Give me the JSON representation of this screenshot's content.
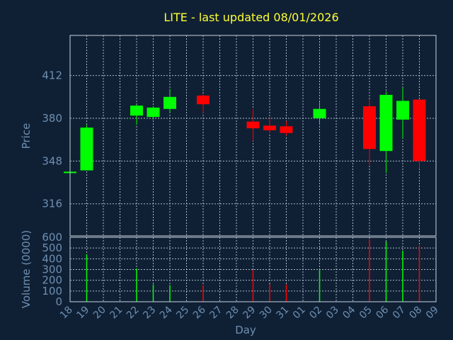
{
  "chart_data": [
    {
      "type": "candlestick",
      "title": "LITE - last updated 08/01/2026",
      "ylabel": "Price",
      "ylim": [
        292,
        442
      ],
      "yticks": [
        316,
        348,
        380,
        412
      ],
      "x": [
        "18",
        "19",
        "20",
        "21",
        "22",
        "23",
        "24",
        "25",
        "26",
        "27",
        "28",
        "29",
        "30",
        "31",
        "01",
        "02",
        "03",
        "04",
        "05",
        "06",
        "07",
        "08",
        "09"
      ],
      "candles": [
        {
          "x": "18",
          "open": 339.5,
          "high": 339.5,
          "low": 339.5,
          "close": 339.5,
          "dir": "up"
        },
        {
          "x": "19",
          "open": 341,
          "high": 375,
          "low": 341,
          "close": 373,
          "dir": "up"
        },
        {
          "x": "22",
          "open": 382,
          "high": 390,
          "low": 375,
          "close": 389.5,
          "dir": "up"
        },
        {
          "x": "23",
          "open": 381,
          "high": 389,
          "low": 379,
          "close": 388,
          "dir": "up"
        },
        {
          "x": "24",
          "open": 387,
          "high": 402,
          "low": 384,
          "close": 396,
          "dir": "up"
        },
        {
          "x": "26",
          "open": 397,
          "high": 398,
          "low": 384,
          "close": 390.5,
          "dir": "down"
        },
        {
          "x": "29",
          "open": 377.5,
          "high": 387,
          "low": 363,
          "close": 372.5,
          "dir": "down"
        },
        {
          "x": "30",
          "open": 374.5,
          "high": 380,
          "low": 369,
          "close": 371,
          "dir": "down"
        },
        {
          "x": "31",
          "open": 374,
          "high": 378,
          "low": 367,
          "close": 369,
          "dir": "down"
        },
        {
          "x": "02",
          "open": 380,
          "high": 392,
          "low": 375,
          "close": 387,
          "dir": "up"
        },
        {
          "x": "05",
          "open": 389,
          "high": 394,
          "low": 345,
          "close": 357,
          "dir": "down"
        },
        {
          "x": "06",
          "open": 355.5,
          "high": 400,
          "low": 339,
          "close": 397.5,
          "dir": "up"
        },
        {
          "x": "07",
          "open": 379,
          "high": 403,
          "low": 365,
          "close": 393,
          "dir": "up"
        },
        {
          "x": "08",
          "open": 394,
          "high": 394,
          "low": 342,
          "close": 348,
          "dir": "down"
        }
      ]
    },
    {
      "type": "bar",
      "ylabel": "Volume (0000)",
      "xlabel": "Day",
      "ylim": [
        0,
        600
      ],
      "yticks": [
        0,
        100,
        200,
        300,
        400,
        500,
        600
      ],
      "categories": [
        "18",
        "19",
        "20",
        "21",
        "22",
        "23",
        "24",
        "25",
        "26",
        "27",
        "28",
        "29",
        "30",
        "31",
        "01",
        "02",
        "03",
        "04",
        "05",
        "06",
        "07",
        "08",
        "09"
      ],
      "values": [
        {
          "x": "19",
          "v": 440,
          "dir": "up"
        },
        {
          "x": "22",
          "v": 310,
          "dir": "up"
        },
        {
          "x": "23",
          "v": 160,
          "dir": "up"
        },
        {
          "x": "24",
          "v": 155,
          "dir": "up"
        },
        {
          "x": "26",
          "v": 155,
          "dir": "down"
        },
        {
          "x": "29",
          "v": 295,
          "dir": "down"
        },
        {
          "x": "30",
          "v": 165,
          "dir": "down"
        },
        {
          "x": "31",
          "v": 160,
          "dir": "down"
        },
        {
          "x": "02",
          "v": 295,
          "dir": "up"
        },
        {
          "x": "05",
          "v": 580,
          "dir": "down"
        },
        {
          "x": "06",
          "v": 560,
          "dir": "up"
        },
        {
          "x": "07",
          "v": 475,
          "dir": "up"
        },
        {
          "x": "08",
          "v": 525,
          "dir": "down"
        }
      ]
    }
  ],
  "colors": {
    "background": "#0f2035",
    "up": "#00ff00",
    "down": "#ff0000",
    "title": "#ffff33",
    "axis_text": "#6f8fb0"
  }
}
